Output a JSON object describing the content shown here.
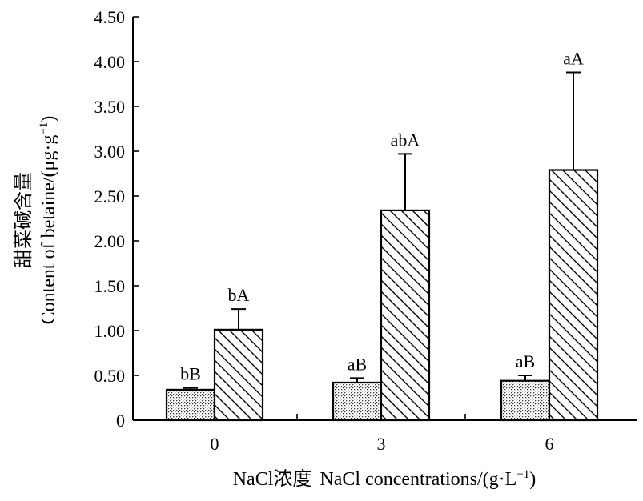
{
  "chart_data": {
    "type": "bar",
    "title": "",
    "xlabel": "NaCl浓度 NaCl concentrations/(g·L⁻¹)",
    "xlabel_cn": "NaCl浓度",
    "xlabel_en": "NaCl concentrations/(g·L",
    "xlabel_sup": "−1",
    "xlabel_close": ")",
    "ylabel_cn": "甜菜碱含量",
    "ylabel_en": "Content of betaine/(μg·g",
    "ylabel_sup": "−1",
    "ylabel_close": ")",
    "ylim": [
      0,
      4.5
    ],
    "yticks": [
      0,
      0.5,
      1.0,
      1.5,
      2.0,
      2.5,
      3.0,
      3.5,
      4.0,
      4.5
    ],
    "ytick_labels": [
      "0",
      "0.50",
      "1.00",
      "1.50",
      "2.00",
      "2.50",
      "3.00",
      "3.50",
      "4.00",
      "4.50"
    ],
    "categories": [
      "0",
      "3",
      "6"
    ],
    "series": [
      {
        "name": "series-dotted",
        "pattern": "dots",
        "values": [
          0.34,
          0.42,
          0.44
        ],
        "errors": [
          0.02,
          0.05,
          0.06
        ],
        "labels": [
          "bB",
          "aB",
          "aB"
        ]
      },
      {
        "name": "series-hatched",
        "pattern": "diagonal",
        "values": [
          1.01,
          2.34,
          2.79
        ],
        "errors": [
          0.23,
          0.63,
          1.09
        ],
        "labels": [
          "bA",
          "abA",
          "aA"
        ]
      }
    ],
    "colors": {
      "axis": "#000000",
      "fill": "#ffffff",
      "pattern": "#000000"
    }
  }
}
